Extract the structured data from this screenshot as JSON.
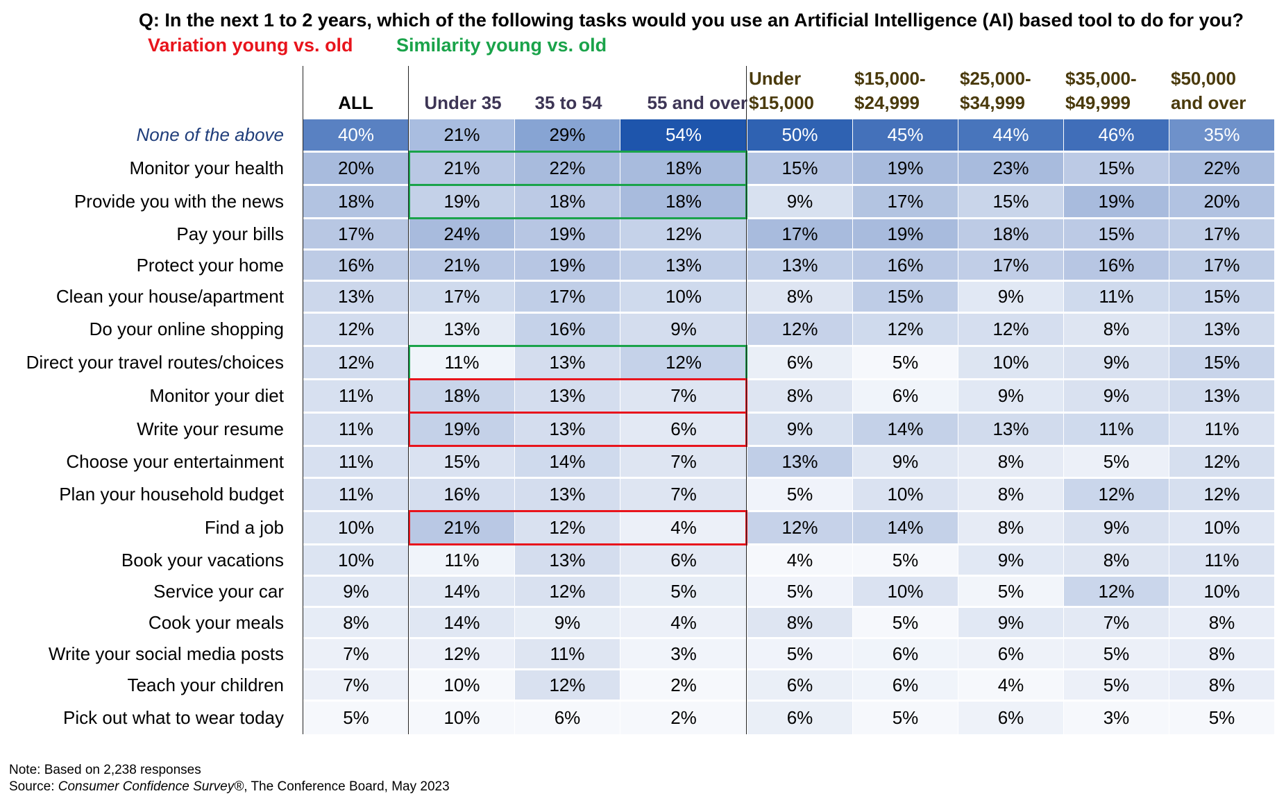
{
  "question": "Q: In the next 1 to 2 years, which of the following tasks would you use an Artificial Intelligence (AI) based tool to do for you?",
  "legend": {
    "variation": {
      "label": "Variation young vs. old",
      "color": "#e8141c"
    },
    "similarity": {
      "label": "Similarity young vs. old",
      "color": "#1aa34a"
    }
  },
  "footnote": {
    "note": "Note: Based on 2,238 responses",
    "source_prefix": "Source: ",
    "source_italic": "Consumer Confidence Survey®",
    "source_suffix": ", The Conference Board, May 2023"
  },
  "colors": {
    "scale_low": "#ffffff",
    "scale_high": "#2155a6",
    "header_age": "#3d3555",
    "header_income": "#4a3a0c",
    "highlight_row_label": "#1f3d7a"
  },
  "chart_data": {
    "type": "table",
    "title": "Q: In the next 1 to 2 years, which of the following tasks would you use an Artificial Intelligence (AI) based tool to do for you?",
    "columns": [
      {
        "group": "all",
        "lines": [
          "ALL"
        ]
      },
      {
        "group": "age",
        "lines": [
          "Under 35"
        ]
      },
      {
        "group": "age",
        "lines": [
          "35 to 54"
        ]
      },
      {
        "group": "age",
        "lines": [
          "55 and over"
        ]
      },
      {
        "group": "income",
        "lines": [
          "Under",
          "$15,000"
        ]
      },
      {
        "group": "income",
        "lines": [
          "$15,000-",
          "$24,999"
        ]
      },
      {
        "group": "income",
        "lines": [
          "$25,000-",
          "$34,999"
        ]
      },
      {
        "group": "income",
        "lines": [
          "$35,000-",
          "$49,999"
        ]
      },
      {
        "group": "income",
        "lines": [
          "$50,000",
          "and over"
        ]
      }
    ],
    "rows": [
      {
        "label": "None of the above",
        "values": [
          40,
          21,
          29,
          54,
          50,
          45,
          44,
          46,
          35
        ],
        "emphasis": true
      },
      {
        "label": "Monitor your health",
        "values": [
          20,
          21,
          22,
          18,
          15,
          19,
          23,
          15,
          22
        ],
        "age_highlight": "similarity"
      },
      {
        "label": "Provide you with the news",
        "values": [
          18,
          19,
          18,
          18,
          9,
          17,
          15,
          19,
          20
        ],
        "age_highlight": "similarity"
      },
      {
        "label": "Pay your bills",
        "values": [
          17,
          24,
          19,
          12,
          17,
          19,
          18,
          15,
          17
        ]
      },
      {
        "label": "Protect your home",
        "values": [
          16,
          21,
          19,
          13,
          13,
          16,
          17,
          16,
          17
        ]
      },
      {
        "label": "Clean your house/apartment",
        "values": [
          13,
          17,
          17,
          10,
          8,
          15,
          9,
          11,
          15
        ]
      },
      {
        "label": "Do your online shopping",
        "values": [
          12,
          13,
          16,
          9,
          12,
          12,
          12,
          8,
          13
        ]
      },
      {
        "label": "Direct your travel routes/choices",
        "values": [
          12,
          11,
          13,
          12,
          6,
          5,
          10,
          9,
          15
        ],
        "age_highlight": "similarity"
      },
      {
        "label": "Monitor your diet",
        "values": [
          11,
          18,
          13,
          7,
          8,
          6,
          9,
          9,
          13
        ],
        "age_highlight": "variation"
      },
      {
        "label": "Write your resume",
        "values": [
          11,
          19,
          13,
          6,
          9,
          14,
          13,
          11,
          11
        ],
        "age_highlight": "variation"
      },
      {
        "label": "Choose your entertainment",
        "values": [
          11,
          15,
          14,
          7,
          13,
          9,
          8,
          5,
          12
        ]
      },
      {
        "label": "Plan your household budget",
        "values": [
          11,
          16,
          13,
          7,
          5,
          10,
          8,
          12,
          12
        ]
      },
      {
        "label": "Find a job",
        "values": [
          10,
          21,
          12,
          4,
          12,
          14,
          8,
          9,
          10
        ],
        "age_highlight": "variation"
      },
      {
        "label": "Book your vacations",
        "values": [
          10,
          11,
          13,
          6,
          4,
          5,
          9,
          8,
          11
        ]
      },
      {
        "label": "Service your car",
        "values": [
          9,
          14,
          12,
          5,
          5,
          10,
          5,
          12,
          10
        ]
      },
      {
        "label": "Cook your meals",
        "values": [
          8,
          14,
          9,
          4,
          8,
          5,
          9,
          7,
          8
        ]
      },
      {
        "label": "Write your social media posts",
        "values": [
          7,
          12,
          11,
          3,
          5,
          6,
          6,
          5,
          8
        ]
      },
      {
        "label": "Teach your children",
        "values": [
          7,
          10,
          12,
          2,
          6,
          6,
          4,
          5,
          8
        ]
      },
      {
        "label": "Pick out what to wear today",
        "values": [
          5,
          10,
          6,
          2,
          6,
          5,
          6,
          3,
          5
        ]
      }
    ],
    "value_suffix": "%"
  }
}
